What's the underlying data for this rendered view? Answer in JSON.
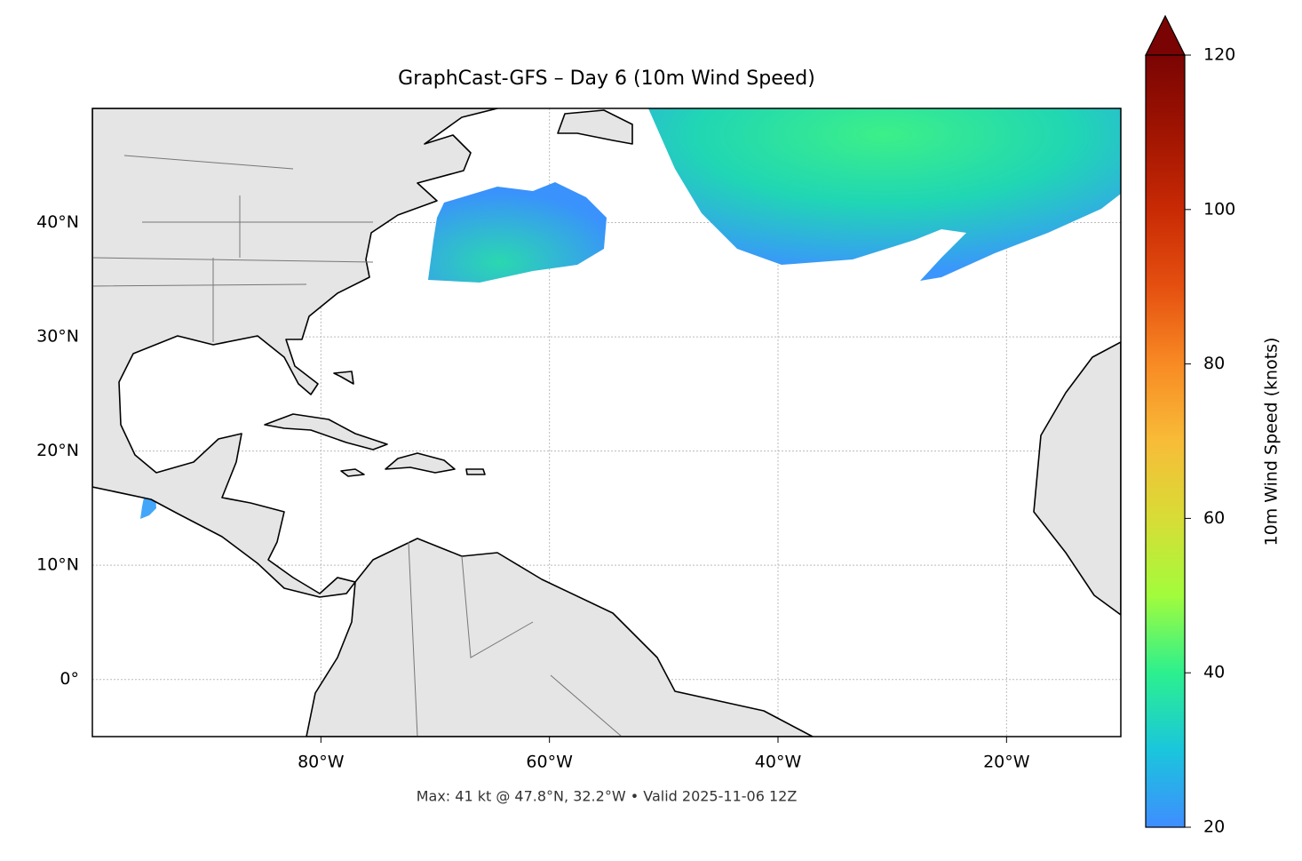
{
  "chart_data": {
    "type": "map",
    "title": "GraphCast-GFS – Day 6 (10m Wind Speed)",
    "annotation": "Max: 41 kt @ 47.8°N, 32.2°W • Valid 2025-11-06 12Z",
    "xlim": [
      -100,
      -10
    ],
    "ylim": [
      -5,
      50
    ],
    "xticks": [
      {
        "value": -80,
        "label": "80°W"
      },
      {
        "value": -60,
        "label": "60°W"
      },
      {
        "value": -40,
        "label": "40°W"
      },
      {
        "value": -20,
        "label": "20°W"
      }
    ],
    "yticks": [
      {
        "value": 0,
        "label": "0°"
      },
      {
        "value": 10,
        "label": "10°N"
      },
      {
        "value": 20,
        "label": "20°N"
      },
      {
        "value": 30,
        "label": "30°N"
      },
      {
        "value": 40,
        "label": "40°N"
      }
    ],
    "grid": true,
    "colorbar": {
      "label": "10m Wind Speed (knots)",
      "lim": [
        20,
        120
      ],
      "ticks": [
        20,
        40,
        60,
        80,
        100,
        120
      ],
      "extend": "max"
    }
  }
}
